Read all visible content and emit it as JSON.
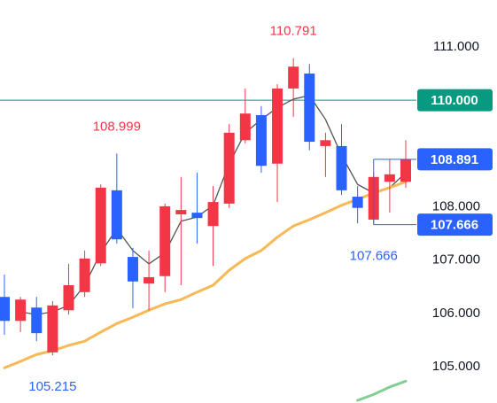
{
  "chart_data": {
    "type": "candlestick",
    "open": [
      106.31,
      105.86,
      106.11,
      105.27,
      106.06,
      106.4,
      106.94,
      108.31,
      107.06,
      106.56,
      106.7,
      107.86,
      107.89,
      107.64,
      108.06,
      109.25,
      109.72,
      108.81,
      110.22,
      110.5,
      109.14,
      109.14,
      108.19,
      107.76,
      108.47,
      108.47
    ],
    "high": [
      106.73,
      106.31,
      106.31,
      106.23,
      106.93,
      107.18,
      108.42,
      108.999,
      107.23,
      107.18,
      108.06,
      108.56,
      108.64,
      108.39,
      109.55,
      110.22,
      109.89,
      110.3,
      110.791,
      110.68,
      109.39,
      109.55,
      108.39,
      108.64,
      108.89,
      109.25
    ],
    "low": [
      105.6,
      105.65,
      105.48,
      105.215,
      105.98,
      106.31,
      106.89,
      107.31,
      106.1,
      106.06,
      106.4,
      106.53,
      107.31,
      106.89,
      107.98,
      109.19,
      108.64,
      108.09,
      109.69,
      109.06,
      108.56,
      108.22,
      107.69,
      107.666,
      107.89,
      108.36
    ],
    "close": [
      105.86,
      106.26,
      105.63,
      106.15,
      106.53,
      107.03,
      108.36,
      107.39,
      106.6,
      106.68,
      108.01,
      107.94,
      107.79,
      108.09,
      109.39,
      109.75,
      108.77,
      110.22,
      110.63,
      109.22,
      109.25,
      108.31,
      107.98,
      108.56,
      108.61,
      108.891
    ],
    "up_color": "#f23645",
    "down_color": "#2962ff",
    "lines": [
      {
        "color": "#555555",
        "values": [
          null,
          106.03,
          105.98,
          106.03,
          106.15,
          106.53,
          107.14,
          107.59,
          107.18,
          106.93,
          107.14,
          107.73,
          107.81,
          108.03,
          108.81,
          109.39,
          109.64,
          109.86,
          110.02,
          110.09,
          109.64,
          108.97,
          108.42,
          108.26,
          108.36,
          108.64
        ]
      },
      {
        "color": "#f7b955",
        "values": [
          104.98,
          105.1,
          105.23,
          105.3,
          105.4,
          105.48,
          105.65,
          105.81,
          105.93,
          106.06,
          106.18,
          106.26,
          106.4,
          106.53,
          106.81,
          107.03,
          107.18,
          107.43,
          107.64,
          107.76,
          107.89,
          108.03,
          108.14,
          108.26,
          108.36,
          108.47
        ]
      },
      {
        "color": "#81cf92",
        "values": [
          null,
          null,
          null,
          null,
          null,
          null,
          null,
          null,
          null,
          null,
          null,
          null,
          null,
          null,
          null,
          null,
          null,
          null,
          null,
          null,
          null,
          null,
          104.37,
          104.48,
          104.62,
          104.73
        ]
      }
    ],
    "ylim": [
      104.32,
      111.88
    ],
    "yticks": [
      {
        "value": 105,
        "label": "105.000"
      },
      {
        "value": 106,
        "label": "106.000"
      },
      {
        "value": 107,
        "label": "107.000"
      },
      {
        "value": 108,
        "label": "108.000"
      },
      {
        "value": 109,
        "label": "109.000"
      },
      {
        "value": 110,
        "label": "110.000"
      },
      {
        "value": 111,
        "label": "111.000"
      }
    ],
    "price_line": {
      "value": 110,
      "label": "110.000",
      "color": "#089981"
    },
    "current_price": {
      "value": 108.891,
      "label": "108.891",
      "color": "#2962ff"
    },
    "low_marker": {
      "value": 107.666,
      "label": "107.666",
      "color": "#2962ff"
    },
    "annotations": [
      {
        "value": 110.791,
        "label": "110.791",
        "color": "#f23645",
        "at": "high"
      },
      {
        "value": 108.999,
        "label": "108.999",
        "color": "#f23645",
        "at": "high"
      },
      {
        "value": 105.215,
        "label": "105.215",
        "color": "#2962ff",
        "at": "low"
      },
      {
        "value": 107.666,
        "label": "107.666",
        "color": "#2962ff",
        "at": "low"
      }
    ]
  }
}
